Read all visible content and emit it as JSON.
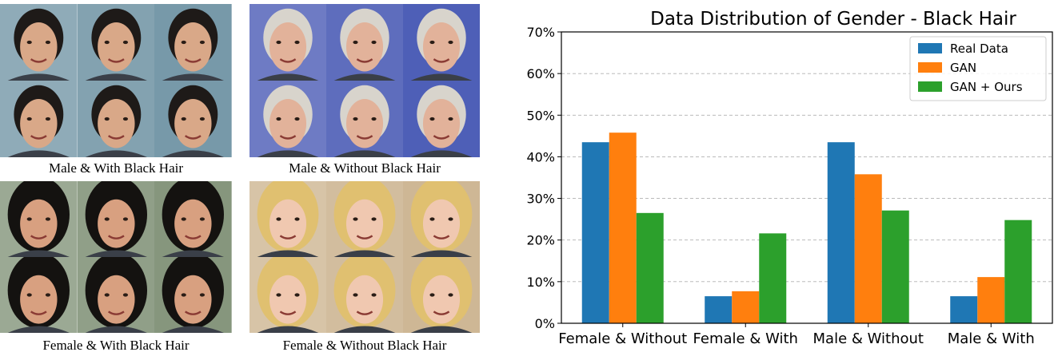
{
  "figure": {
    "panels": [
      {
        "caption": "Male & With Black Hair",
        "face_palette": [
          "#6a8fa0",
          "#d9a888",
          "#1e1a18"
        ]
      },
      {
        "caption": "Male & Without Black Hair",
        "face_palette": [
          "#3d4fb0",
          "#e2b29a",
          "#d8d4cc"
        ]
      },
      {
        "caption": "Female & With Black Hair",
        "face_palette": [
          "#7a8c70",
          "#d8a080",
          "#141210"
        ]
      },
      {
        "caption": "Female & Without Black Hair",
        "face_palette": [
          "#c9b08a",
          "#f0c8b0",
          "#e0c070"
        ]
      }
    ]
  },
  "chart_data": {
    "type": "bar",
    "title": "Data Distribution of Gender - Black Hair",
    "xlabel": "",
    "ylabel": "",
    "categories": [
      "Female & Without",
      "Female & With",
      "Male & Without",
      "Male & With"
    ],
    "series": [
      {
        "name": "Real Data",
        "color": "#1f77b4",
        "values": [
          43.5,
          6.5,
          43.5,
          6.5
        ]
      },
      {
        "name": "GAN",
        "color": "#ff7f0e",
        "values": [
          45.8,
          7.7,
          35.8,
          11.1
        ]
      },
      {
        "name": "GAN + Ours",
        "color": "#2ca02c",
        "values": [
          26.5,
          21.6,
          27.1,
          24.8
        ]
      }
    ],
    "ylim": [
      0,
      70
    ],
    "yticks": [
      "0%",
      "10%",
      "20%",
      "30%",
      "40%",
      "50%",
      "60%",
      "70%"
    ],
    "grid": true,
    "legend": "top-right"
  }
}
